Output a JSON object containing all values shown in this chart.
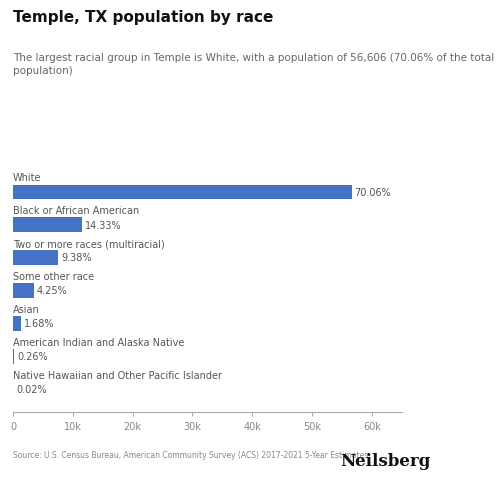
{
  "title": "Temple, TX population by race",
  "subtitle": "The largest racial group in Temple is White, with a population of 56,606 (70.06% of the total\npopulation)",
  "categories": [
    "White",
    "Black or African American",
    "Two or more races (multiracial)",
    "Some other race",
    "Asian",
    "American Indian and Alaska Native",
    "Native Hawaiian and Other Pacific Islander"
  ],
  "values": [
    56606,
    11577,
    7581,
    3440,
    1358,
    210,
    16
  ],
  "percentages": [
    "70.06%",
    "14.33%",
    "9.38%",
    "4.25%",
    "1.68%",
    "0.26%",
    "0.02%"
  ],
  "bar_color": "#4472C4",
  "background_color": "#ffffff",
  "xlim": [
    0,
    65000
  ],
  "xticks": [
    0,
    10000,
    20000,
    30000,
    40000,
    50000,
    60000
  ],
  "xtick_labels": [
    "0",
    "10k",
    "20k",
    "30k",
    "40k",
    "50k",
    "60k"
  ],
  "source": "Source: U.S. Census Bureau, American Community Survey (ACS) 2017-2021 5-Year Estimates",
  "brand": "Neilsberg",
  "title_fontsize": 11,
  "subtitle_fontsize": 7.5,
  "category_fontsize": 7,
  "pct_fontsize": 7,
  "tick_fontsize": 7,
  "source_fontsize": 5.5,
  "brand_fontsize": 12
}
